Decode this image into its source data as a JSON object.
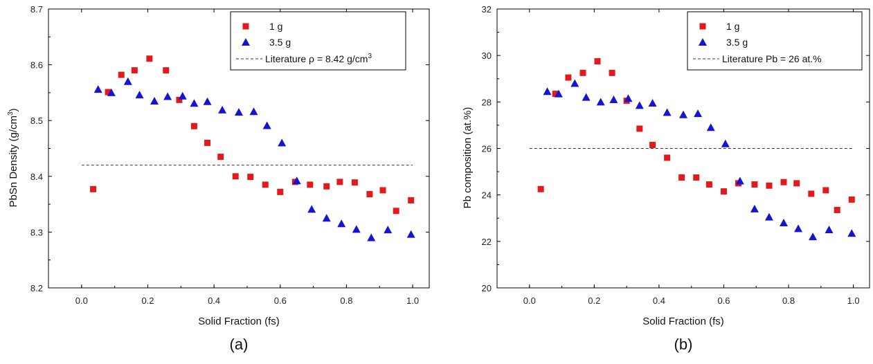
{
  "chart_data": [
    {
      "type": "scatter",
      "panel_label": "(a)",
      "xlabel": "Solid Fraction (fs)",
      "ylabel": "PbSn Density (g/cm³)",
      "ylabel_main": "PbSn Density (g/cm",
      "ylabel_sup": "3",
      "ylabel_tail": ")",
      "xlim": [
        -0.1,
        1.05
      ],
      "ylim": [
        8.2,
        8.7
      ],
      "xticks": [
        0.0,
        0.2,
        0.4,
        0.6,
        0.8,
        1.0
      ],
      "xtick_labels": [
        "0.0",
        "0.2",
        "0.4",
        "0.6",
        "0.8",
        "1.0"
      ],
      "yticks": [
        8.2,
        8.3,
        8.4,
        8.5,
        8.6,
        8.7
      ],
      "ytick_labels": [
        "8.2",
        "8.3",
        "8.4",
        "8.5",
        "8.6",
        "8.7"
      ],
      "legend_position": "top-right",
      "series": [
        {
          "name": "1 g",
          "marker": "square",
          "color": "#e31a1c",
          "x": [
            0.035,
            0.08,
            0.12,
            0.16,
            0.205,
            0.255,
            0.295,
            0.34,
            0.38,
            0.42,
            0.465,
            0.51,
            0.555,
            0.6,
            0.645,
            0.69,
            0.74,
            0.78,
            0.825,
            0.87,
            0.91,
            0.95,
            0.995
          ],
          "y": [
            8.377,
            8.551,
            8.582,
            8.59,
            8.611,
            8.59,
            8.537,
            8.49,
            8.46,
            8.435,
            8.4,
            8.399,
            8.385,
            8.372,
            8.39,
            8.385,
            8.382,
            8.39,
            8.389,
            8.368,
            8.375,
            8.338,
            8.357
          ]
        },
        {
          "name": "3.5 g",
          "marker": "triangle",
          "color": "#1414d2",
          "x": [
            0.05,
            0.09,
            0.14,
            0.175,
            0.22,
            0.26,
            0.305,
            0.34,
            0.38,
            0.425,
            0.475,
            0.52,
            0.56,
            0.605,
            0.65,
            0.695,
            0.74,
            0.785,
            0.83,
            0.875,
            0.925,
            0.995
          ],
          "y": [
            8.556,
            8.55,
            8.57,
            8.546,
            8.535,
            8.543,
            8.544,
            8.531,
            8.534,
            8.519,
            8.515,
            8.516,
            8.491,
            8.46,
            8.392,
            8.341,
            8.325,
            8.315,
            8.305,
            8.29,
            8.304,
            8.296
          ]
        }
      ],
      "reference_line": {
        "label_main": "Literature ρ = 8.42 g/cm",
        "label_sup": "3",
        "label": "Literature ρ = 8.42 g/cm³",
        "value": 8.42,
        "x_range": [
          0.0,
          1.0
        ]
      }
    },
    {
      "type": "scatter",
      "panel_label": "(b)",
      "xlabel": "Solid Fraction (fs)",
      "ylabel": "Pb composition (at.%)",
      "xlim": [
        -0.1,
        1.05
      ],
      "ylim": [
        20,
        32
      ],
      "xticks": [
        0.0,
        0.2,
        0.4,
        0.6,
        0.8,
        1.0
      ],
      "xtick_labels": [
        "0.0",
        "0.2",
        "0.4",
        "0.6",
        "0.8",
        "1.0"
      ],
      "yticks": [
        20,
        22,
        24,
        26,
        28,
        30,
        32
      ],
      "ytick_labels": [
        "20",
        "22",
        "24",
        "26",
        "28",
        "30",
        "32"
      ],
      "legend_position": "top-right",
      "series": [
        {
          "name": "1 g",
          "marker": "square",
          "color": "#e31a1c",
          "x": [
            0.035,
            0.08,
            0.12,
            0.165,
            0.21,
            0.255,
            0.3,
            0.34,
            0.38,
            0.425,
            0.47,
            0.515,
            0.555,
            0.6,
            0.645,
            0.695,
            0.74,
            0.785,
            0.825,
            0.87,
            0.915,
            0.95,
            0.995
          ],
          "y": [
            24.25,
            28.35,
            29.05,
            29.25,
            29.75,
            29.25,
            28.05,
            26.85,
            26.15,
            25.6,
            24.75,
            24.75,
            24.45,
            24.15,
            24.5,
            24.45,
            24.4,
            24.55,
            24.5,
            24.05,
            24.2,
            23.35,
            23.8
          ]
        },
        {
          "name": "3.5 g",
          "marker": "triangle",
          "color": "#1414d2",
          "x": [
            0.055,
            0.09,
            0.14,
            0.175,
            0.22,
            0.26,
            0.305,
            0.34,
            0.38,
            0.425,
            0.475,
            0.52,
            0.56,
            0.605,
            0.65,
            0.695,
            0.74,
            0.785,
            0.83,
            0.875,
            0.925,
            0.995
          ],
          "y": [
            28.45,
            28.35,
            28.8,
            28.2,
            28.0,
            28.1,
            28.15,
            27.85,
            27.95,
            27.55,
            27.45,
            27.5,
            26.9,
            26.2,
            24.6,
            23.4,
            23.05,
            22.8,
            22.55,
            22.2,
            22.5,
            22.35
          ]
        }
      ],
      "reference_line": {
        "label_main": "Literature Pb = 26 at.%",
        "label_sup": "",
        "label": "Literature Pb = 26 at.%",
        "value": 26,
        "x_range": [
          0.0,
          1.0
        ]
      }
    }
  ]
}
